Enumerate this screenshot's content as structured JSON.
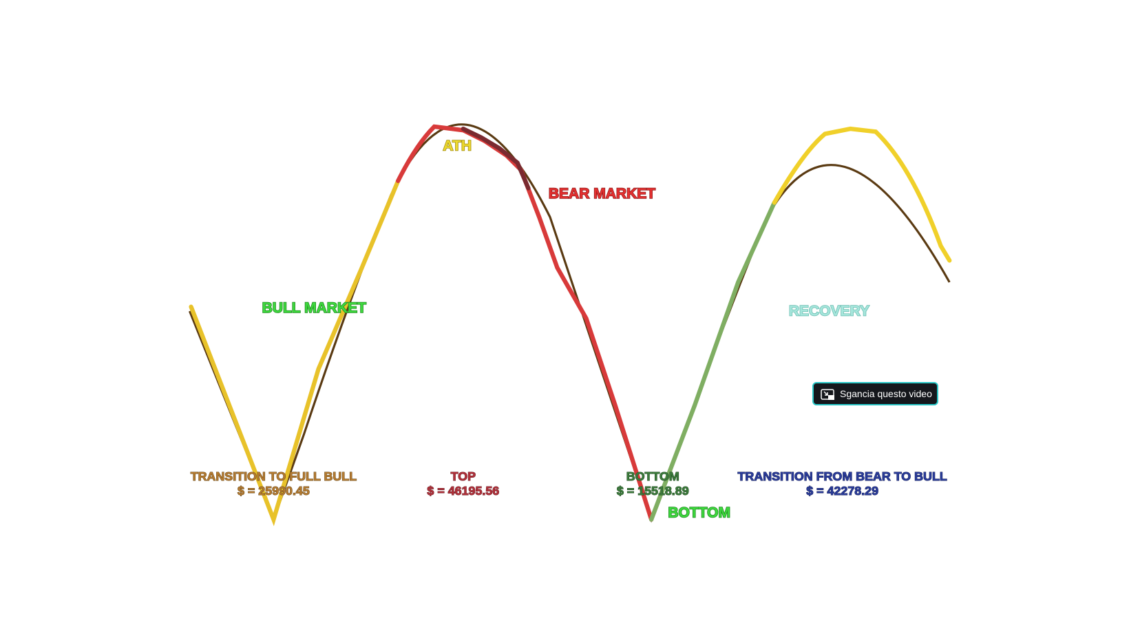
{
  "phases": {
    "ath": "ATH",
    "bear_market": "BEAR MARKET",
    "bull_market": "BULL MARKET",
    "recovery": "RECOVERY",
    "bottom": "BOTTOM"
  },
  "markers": [
    {
      "title": "TRANSITION TO FULL BULL",
      "price": "$ = 25990.45"
    },
    {
      "title": "TOP",
      "price": "$ = 46195.56"
    },
    {
      "title": "BOTTOM",
      "price": "$ = 15518.89"
    },
    {
      "title": "TRANSITION FROM BEAR TO BULL",
      "price": "$ = 42278.29"
    }
  ],
  "tooltip": {
    "label": "Sgancia questo video"
  }
}
